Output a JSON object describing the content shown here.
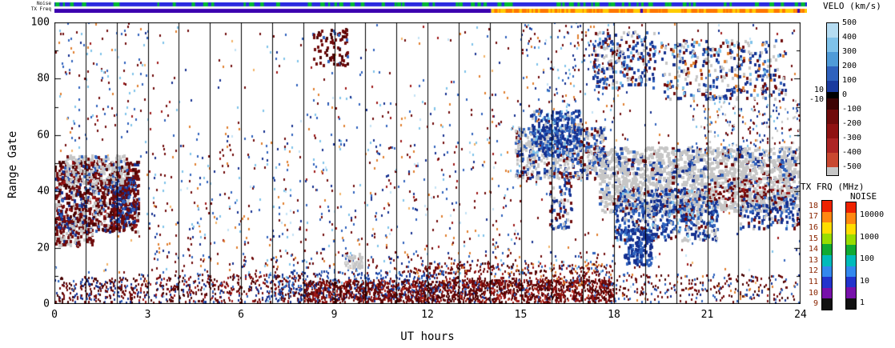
{
  "chart_data": {
    "type": "heatmap",
    "title": "",
    "xlabel": "UT hours",
    "ylabel": "Range Gate",
    "xlim": [
      0,
      24
    ],
    "ylim": [
      0,
      100
    ],
    "xticks": [
      0,
      3,
      6,
      9,
      12,
      15,
      18,
      21,
      24
    ],
    "yticks": [
      0,
      20,
      40,
      60,
      80,
      100
    ],
    "hour_gridlines": true,
    "features": [
      {
        "ut": "00:00-02:40",
        "gates": "22-52",
        "desc": "Dense scatter blob: negative velocities (dark red) with ground scatter (gray) on upper edge"
      },
      {
        "ut": "02:30-18:00",
        "gates": "0-14",
        "desc": "Near-range band of mostly negative velocity (dark red), densest 08:00-18:00, mixed positive (blue) 07:00-12:30"
      },
      {
        "ut": "14:45-17:40",
        "gates": "44-68",
        "desc": "Ground scatter patch with positive-velocity (blue) cluster above"
      },
      {
        "ut": "17:30-24:00",
        "gates": "30-55",
        "desc": "Extended ground scatter band (gray); positive velocities (blue) 18:00-21:30 at gates 22-40; small negative patches 21:00-23:40 near gate 40"
      },
      {
        "ut": "17:20-23:30",
        "gates": "72-96",
        "desc": "Patchy high-gate scatter, mixed positive velocities and ground scatter"
      },
      {
        "ut": "00:00-24:00",
        "gates": "0-100",
        "desc": "Sparse salt-and-pepper echoes of mixed velocity across all times and gates"
      }
    ],
    "palette": {
      "dr": "#6f0b0b",
      "mr": "#490404",
      "rd": "#9e1818",
      "br": "#c23c28",
      "or": "#e08030",
      "lo": "#f2b368",
      "nv": "#15308f",
      "bl": "#2f62bd",
      "lb": "#7ec2ea",
      "pb": "#c2e2f5",
      "gy": "#c6c6c6",
      "lg": "#d8d8d8"
    },
    "regions": [
      {
        "name": "background-noise",
        "t": [
          0,
          24
        ],
        "g": [
          0,
          100
        ],
        "n": 650,
        "s": [
          2,
          3
        ],
        "colors": [
          [
            "dr",
            5
          ],
          [
            "bl",
            3
          ],
          [
            "nv",
            2
          ],
          [
            "lb",
            2
          ],
          [
            "or",
            2
          ],
          [
            "rd",
            2
          ],
          [
            "pb",
            1
          ],
          [
            "lo",
            1
          ]
        ]
      },
      {
        "name": "meteor-band-early",
        "t": [
          2.5,
          8
        ],
        "g": [
          0,
          10
        ],
        "n": 450,
        "s": [
          2,
          3
        ],
        "colors": [
          [
            "dr",
            5
          ],
          [
            "mr",
            3
          ],
          [
            "rd",
            2
          ],
          [
            "nv",
            2
          ],
          [
            "bl",
            1
          ]
        ]
      },
      {
        "name": "meteor-band-blue",
        "t": [
          6.8,
          12.5
        ],
        "g": [
          1,
          11
        ],
        "n": 380,
        "s": [
          2,
          3
        ],
        "colors": [
          [
            "nv",
            4
          ],
          [
            "bl",
            3
          ],
          [
            "lb",
            1
          ],
          [
            "dr",
            2
          ]
        ]
      },
      {
        "name": "meteor-band-dense",
        "t": [
          8,
          18
        ],
        "g": [
          0,
          8
        ],
        "n": 1900,
        "s": [
          2,
          3
        ],
        "colors": [
          [
            "dr",
            12
          ],
          [
            "mr",
            8
          ],
          [
            "rd",
            5
          ],
          [
            "br",
            2
          ],
          [
            "nv",
            1
          ],
          [
            "bl",
            1
          ]
        ]
      },
      {
        "name": "meteor-band-upper",
        "t": [
          11.5,
          18
        ],
        "g": [
          6,
          14
        ],
        "n": 380,
        "s": [
          2,
          3
        ],
        "colors": [
          [
            "dr",
            5
          ],
          [
            "rd",
            2
          ],
          [
            "mr",
            2
          ],
          [
            "bl",
            1
          ],
          [
            "or",
            1
          ]
        ]
      },
      {
        "name": "low-gate-sparse",
        "t": [
          3,
          18
        ],
        "g": [
          10,
          18
        ],
        "n": 230,
        "s": [
          2,
          3
        ],
        "colors": [
          [
            "dr",
            4
          ],
          [
            "bl",
            2
          ],
          [
            "or",
            1
          ],
          [
            "lb",
            1
          ],
          [
            "nv",
            1
          ]
        ]
      },
      {
        "name": "low-gate-left",
        "t": [
          0,
          2.5
        ],
        "g": [
          0,
          9
        ],
        "n": 220,
        "s": [
          2,
          3
        ],
        "colors": [
          [
            "dr",
            4
          ],
          [
            "nv",
            2
          ],
          [
            "bl",
            1
          ],
          [
            "mr",
            2
          ]
        ]
      },
      {
        "name": "low-gate-right",
        "t": [
          18,
          24
        ],
        "g": [
          0,
          10
        ],
        "n": 260,
        "s": [
          2,
          3
        ],
        "colors": [
          [
            "dr",
            4
          ],
          [
            "mr",
            2
          ],
          [
            "bl",
            2
          ],
          [
            "nv",
            1
          ],
          [
            "or",
            1
          ]
        ]
      },
      {
        "name": "dawn-blob-core",
        "t": [
          0,
          2.7
        ],
        "g": [
          25,
          50
        ],
        "n": 950,
        "s": [
          3,
          4
        ],
        "colors": [
          [
            "dr",
            7
          ],
          [
            "mr",
            3
          ],
          [
            "rd",
            2
          ],
          [
            "gy",
            4
          ],
          [
            "nv",
            2
          ],
          [
            "bl",
            1
          ]
        ]
      },
      {
        "name": "dawn-blob-low",
        "t": [
          0,
          1.2
        ],
        "g": [
          20,
          30
        ],
        "n": 160,
        "s": [
          3,
          4
        ],
        "colors": [
          [
            "gy",
            3
          ],
          [
            "dr",
            3
          ],
          [
            "nv",
            1
          ]
        ]
      },
      {
        "name": "dawn-blob-streak",
        "t": [
          1.8,
          2.6
        ],
        "g": [
          28,
          44
        ],
        "n": 200,
        "s": [
          3,
          4
        ],
        "colors": [
          [
            "dr",
            4
          ],
          [
            "nv",
            3
          ],
          [
            "bl",
            1
          ]
        ]
      },
      {
        "name": "dawn-blob-gray-top",
        "t": [
          0.3,
          2.3
        ],
        "g": [
          42,
          52
        ],
        "n": 220,
        "s": [
          3,
          4
        ],
        "colors": [
          [
            "gy",
            6
          ],
          [
            "dr",
            1
          ],
          [
            "bl",
            1
          ]
        ]
      },
      {
        "name": "midday-sparse-low",
        "t": [
          3,
          8
        ],
        "g": [
          18,
          60
        ],
        "n": 170,
        "s": [
          2,
          3
        ],
        "colors": [
          [
            "dr",
            3
          ],
          [
            "bl",
            2
          ],
          [
            "lb",
            2
          ],
          [
            "or",
            2
          ],
          [
            "pb",
            1
          ],
          [
            "nv",
            1
          ]
        ]
      },
      {
        "name": "midday-sparse",
        "t": [
          8,
          15
        ],
        "g": [
          15,
          75
        ],
        "n": 300,
        "s": [
          2,
          3
        ],
        "colors": [
          [
            "dr",
            3
          ],
          [
            "bl",
            2
          ],
          [
            "lb",
            2
          ],
          [
            "or",
            2
          ],
          [
            "pb",
            1
          ],
          [
            "nv",
            2
          ],
          [
            "rd",
            1
          ]
        ]
      },
      {
        "name": "gray-patch-9h",
        "t": [
          9.3,
          9.9
        ],
        "g": [
          12,
          17
        ],
        "n": 45,
        "s": [
          3,
          4
        ],
        "colors": [
          [
            "gy",
            5
          ],
          [
            "lg",
            2
          ]
        ]
      },
      {
        "name": "dusk-gray-1",
        "t": [
          14.8,
          17.7
        ],
        "g": [
          44,
          62
        ],
        "n": 620,
        "s": [
          3,
          4
        ],
        "colors": [
          [
            "gy",
            6
          ],
          [
            "nv",
            2
          ],
          [
            "bl",
            2
          ],
          [
            "dr",
            1
          ]
        ]
      },
      {
        "name": "dusk-blue-cluster",
        "t": [
          15.3,
          16.9
        ],
        "g": [
          52,
          68
        ],
        "n": 320,
        "s": [
          3,
          4
        ],
        "colors": [
          [
            "nv",
            4
          ],
          [
            "bl",
            3
          ],
          [
            "lb",
            1
          ],
          [
            "gy",
            1
          ]
        ]
      },
      {
        "name": "evening-gray-main",
        "t": [
          17.5,
          24
        ],
        "g": [
          32,
          55
        ],
        "n": 1500,
        "s": [
          4,
          4
        ],
        "colors": [
          [
            "gy",
            20
          ],
          [
            "nv",
            2
          ],
          [
            "bl",
            2
          ],
          [
            "dr",
            1
          ]
        ]
      },
      {
        "name": "evening-blue-band",
        "t": [
          18,
          21.3
        ],
        "g": [
          22,
          40
        ],
        "n": 600,
        "s": [
          3,
          4
        ],
        "colors": [
          [
            "nv",
            4
          ],
          [
            "bl",
            3
          ],
          [
            "gy",
            3
          ],
          [
            "lb",
            1
          ],
          [
            "dr",
            1
          ]
        ]
      },
      {
        "name": "evening-blue-low",
        "t": [
          18.3,
          19.2
        ],
        "g": [
          13,
          26
        ],
        "n": 160,
        "s": [
          3,
          4
        ],
        "colors": [
          [
            "nv",
            3
          ],
          [
            "bl",
            2
          ]
        ]
      },
      {
        "name": "evening-red-specks",
        "t": [
          21,
          23.7
        ],
        "g": [
          36,
          44
        ],
        "n": 130,
        "s": [
          3,
          3
        ],
        "colors": [
          [
            "dr",
            3
          ],
          [
            "rd",
            1
          ],
          [
            "gy",
            2
          ]
        ]
      },
      {
        "name": "evening-mid-sparse",
        "t": [
          20.5,
          24
        ],
        "g": [
          52,
          72
        ],
        "n": 200,
        "s": [
          2,
          3
        ],
        "colors": [
          [
            "bl",
            2
          ],
          [
            "dr",
            2
          ],
          [
            "lb",
            1
          ],
          [
            "gy",
            2
          ],
          [
            "or",
            1
          ],
          [
            "nv",
            1
          ]
        ]
      },
      {
        "name": "evening-high-1",
        "t": [
          17.3,
          19.3
        ],
        "g": [
          76,
          96
        ],
        "n": 240,
        "s": [
          3,
          4
        ],
        "colors": [
          [
            "nv",
            3
          ],
          [
            "bl",
            2
          ],
          [
            "dr",
            2
          ],
          [
            "gy",
            2
          ],
          [
            "lb",
            1
          ]
        ]
      },
      {
        "name": "evening-high-2",
        "t": [
          19.5,
          23.5
        ],
        "g": [
          72,
          93
        ],
        "n": 380,
        "s": [
          3,
          4
        ],
        "colors": [
          [
            "nv",
            3
          ],
          [
            "bl",
            2
          ],
          [
            "gy",
            3
          ],
          [
            "dr",
            2
          ],
          [
            "lb",
            1
          ],
          [
            "or",
            1
          ]
        ]
      },
      {
        "name": "morning-high-cluster",
        "t": [
          8.3,
          9.4
        ],
        "g": [
          84,
          97
        ],
        "n": 85,
        "s": [
          3,
          4
        ],
        "colors": [
          [
            "dr",
            3
          ],
          [
            "mr",
            2
          ],
          [
            "bl",
            1
          ]
        ]
      },
      {
        "name": "early-high-sparse",
        "t": [
          0,
          3
        ],
        "g": [
          55,
          100
        ],
        "n": 110,
        "s": [
          2,
          3
        ],
        "colors": [
          [
            "dr",
            2
          ],
          [
            "bl",
            2
          ],
          [
            "lb",
            1
          ],
          [
            "or",
            1
          ]
        ]
      },
      {
        "name": "pre-dusk-high-sparse",
        "t": [
          15,
          18
        ],
        "g": [
          62,
          100
        ],
        "n": 140,
        "s": [
          2,
          3
        ],
        "colors": [
          [
            "dr",
            2
          ],
          [
            "bl",
            2
          ],
          [
            "or",
            1
          ],
          [
            "lb",
            1
          ],
          [
            "nv",
            1
          ]
        ]
      },
      {
        "name": "late-blue-under-gray",
        "t": [
          22,
          24
        ],
        "g": [
          26,
          38
        ],
        "n": 140,
        "s": [
          3,
          4
        ],
        "colors": [
          [
            "nv",
            3
          ],
          [
            "bl",
            2
          ],
          [
            "dr",
            1
          ],
          [
            "gy",
            1
          ]
        ]
      },
      {
        "name": "midday-16h-column",
        "t": [
          15.9,
          16.6
        ],
        "g": [
          26,
          46
        ],
        "n": 90,
        "s": [
          3,
          4
        ],
        "colors": [
          [
            "nv",
            2
          ],
          [
            "bl",
            2
          ],
          [
            "dr",
            2
          ],
          [
            "gy",
            1
          ]
        ]
      }
    ]
  },
  "strips": {
    "noise_label": "Noise",
    "txfreq_label": "TX Freq",
    "noise_strip": {
      "base": "#2b2be0",
      "mark": "#00bb33",
      "mark_count": 70
    },
    "txfreq_strip": {
      "purple": "#3c00b0",
      "switch_hour": 14.05,
      "yellow": "#ffcc00",
      "orange": "#ff7700",
      "orange_count": 140,
      "purple_marks": [
        18.85,
        23.9
      ]
    }
  },
  "colorbars": {
    "velo": {
      "title": "VELO (km/s)",
      "right_labels": [
        "500",
        "400",
        "300",
        "200",
        "100",
        "0",
        "-100",
        "-200",
        "-300",
        "-400",
        "-500"
      ],
      "left_labels": [
        "10",
        "-10"
      ],
      "segments": [
        {
          "color": "#b5dcf2",
          "h": 18
        },
        {
          "color": "#7fc2ea",
          "h": 18
        },
        {
          "color": "#4f9bd8",
          "h": 18
        },
        {
          "color": "#2f62bd",
          "h": 18
        },
        {
          "color": "#1a3a9e",
          "h": 14
        },
        {
          "color": "#000000",
          "h": 8
        },
        {
          "color": "#3d0404",
          "h": 14
        },
        {
          "color": "#6f0b0b",
          "h": 18
        },
        {
          "color": "#8f1212",
          "h": 18
        },
        {
          "color": "#ad2424",
          "h": 18
        },
        {
          "color": "#c94830",
          "h": 18
        },
        {
          "color": "#c6c6c6",
          "h": 10
        }
      ]
    },
    "txfrq": {
      "title": "TX FRQ (MHz)",
      "labels": [
        "18",
        "17",
        "16",
        "15",
        "14",
        "13",
        "12",
        "11",
        "10",
        "9"
      ],
      "label_color": "#8b2500",
      "colors": [
        "#ee2200",
        "#ff8811",
        "#ffdd00",
        "#99dd00",
        "#11aa33",
        "#00bbbb",
        "#3388ee",
        "#2233cc",
        "#7711aa",
        "#111111"
      ]
    },
    "noise": {
      "title": "NOISE",
      "labels": [
        "10000",
        "1000",
        "100",
        "10",
        "1"
      ],
      "colors": [
        "#ee2200",
        "#ff8811",
        "#ffdd00",
        "#99dd00",
        "#11aa33",
        "#00bbbb",
        "#3388ee",
        "#2233cc",
        "#7711aa",
        "#111111"
      ]
    }
  }
}
